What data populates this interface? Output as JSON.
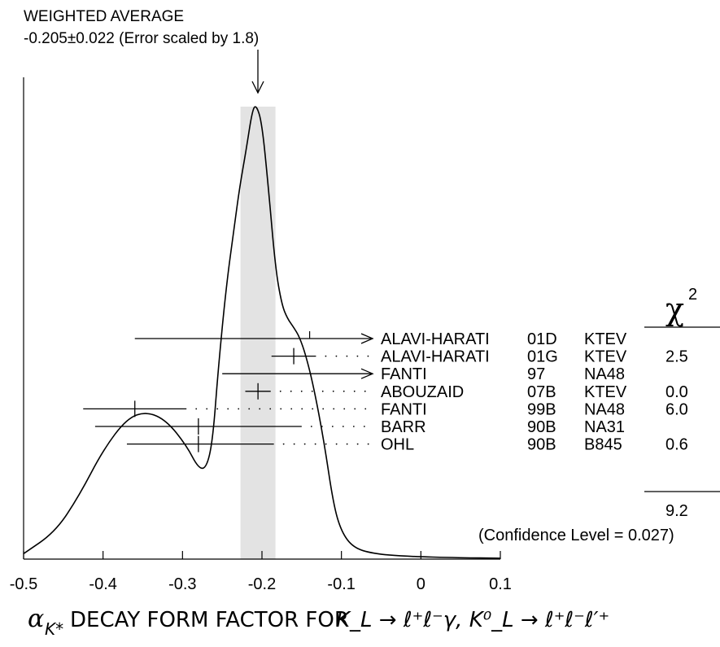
{
  "header": {
    "line1": "WEIGHTED AVERAGE",
    "line2": "-0.205±0.022 (Error scaled by 1.8)"
  },
  "axis_title": {
    "prefix": "α",
    "sub": "K*",
    "text": " DECAY FORM FACTOR FOR ",
    "formula": "K_L → ℓ⁺ℓ⁻γ, K⁰_L → ℓ⁺ℓ⁻ℓ′⁺"
  },
  "chi2": {
    "symbol": "χ",
    "sup": "2",
    "total": "9.2",
    "confidence": "(Confidence Level = 0.027)"
  },
  "chart_data": {
    "type": "ideogram",
    "xlim": [
      -0.5,
      0.1
    ],
    "xticks": [
      "-0.5",
      "-0.4",
      "-0.3",
      "-0.2",
      "-0.1",
      "0",
      "0.1"
    ],
    "xtick_values": [
      -0.5,
      -0.4,
      -0.3,
      -0.2,
      -0.1,
      0,
      0.1
    ],
    "average": {
      "value": -0.205,
      "error": 0.022,
      "scale_factor": 1.8
    },
    "measurements": [
      {
        "author": "ALAVI-HARATI",
        "year": "01D",
        "experiment": "KTEV",
        "value": -0.14,
        "low": -0.36,
        "high": null,
        "limit": "arrow",
        "chi2": ""
      },
      {
        "author": "ALAVI-HARATI",
        "year": "01G",
        "experiment": "KTEV",
        "value": -0.16,
        "low": -0.188,
        "high": -0.132,
        "limit": "",
        "chi2": "2.5"
      },
      {
        "author": "FANTI",
        "year": "97",
        "experiment": "NA48",
        "value": -0.25,
        "low": -0.25,
        "high": null,
        "limit": "arrow",
        "chi2": ""
      },
      {
        "author": "ABOUZAID",
        "year": "07B",
        "experiment": "KTEV",
        "value": -0.205,
        "low": -0.221,
        "high": -0.189,
        "limit": "",
        "chi2": "0.0"
      },
      {
        "author": "FANTI",
        "year": "99B",
        "experiment": "NA48",
        "value": -0.36,
        "low": -0.425,
        "high": -0.295,
        "limit": "",
        "chi2": "6.0"
      },
      {
        "author": "BARR",
        "year": "90B",
        "experiment": "NA31",
        "value": -0.28,
        "low": -0.41,
        "high": -0.15,
        "limit": "",
        "chi2": ""
      },
      {
        "author": "OHL",
        "year": "90B",
        "experiment": "B845",
        "value": -0.28,
        "low": -0.37,
        "high": -0.185,
        "limit": "",
        "chi2": "0.6"
      }
    ],
    "ideogram_curve": [
      [
        -0.5,
        0.012
      ],
      [
        -0.46,
        0.06
      ],
      [
        -0.43,
        0.14
      ],
      [
        -0.4,
        0.24
      ],
      [
        -0.37,
        0.31
      ],
      [
        -0.345,
        0.325
      ],
      [
        -0.32,
        0.305
      ],
      [
        -0.295,
        0.25
      ],
      [
        -0.28,
        0.2
      ],
      [
        -0.27,
        0.2
      ],
      [
        -0.262,
        0.26
      ],
      [
        -0.255,
        0.42
      ],
      [
        -0.245,
        0.6
      ],
      [
        -0.235,
        0.73
      ],
      [
        -0.228,
        0.82
      ],
      [
        -0.22,
        0.9
      ],
      [
        -0.212,
        0.99
      ],
      [
        -0.207,
        1.0
      ],
      [
        -0.2,
        0.96
      ],
      [
        -0.192,
        0.82
      ],
      [
        -0.183,
        0.64
      ],
      [
        -0.175,
        0.56
      ],
      [
        -0.168,
        0.53
      ],
      [
        -0.16,
        0.51
      ],
      [
        -0.153,
        0.49
      ],
      [
        -0.145,
        0.45
      ],
      [
        -0.135,
        0.38
      ],
      [
        -0.122,
        0.26
      ],
      [
        -0.11,
        0.12
      ],
      [
        -0.1,
        0.06
      ],
      [
        -0.085,
        0.025
      ],
      [
        -0.06,
        0.012
      ],
      [
        -0.02,
        0.006
      ],
      [
        0.05,
        0.003
      ],
      [
        0.1,
        0.002
      ]
    ]
  }
}
